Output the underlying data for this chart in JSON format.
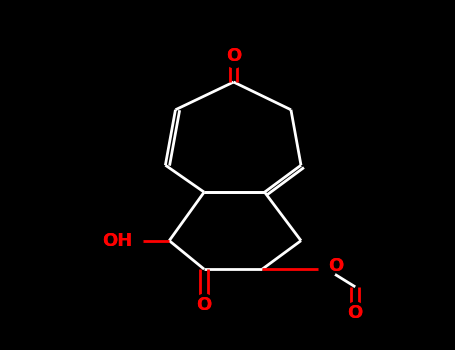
{
  "bg_color": "#000000",
  "bond_color": "#ffffff",
  "atom_color": "#ff0000",
  "bond_width": 2.0,
  "dbo": 0.012,
  "figsize": [
    4.55,
    3.5
  ],
  "dpi": 100,
  "xlim": [
    0.0,
    1.0
  ],
  "ylim": [
    0.0,
    1.0
  ],
  "font_size": 13
}
